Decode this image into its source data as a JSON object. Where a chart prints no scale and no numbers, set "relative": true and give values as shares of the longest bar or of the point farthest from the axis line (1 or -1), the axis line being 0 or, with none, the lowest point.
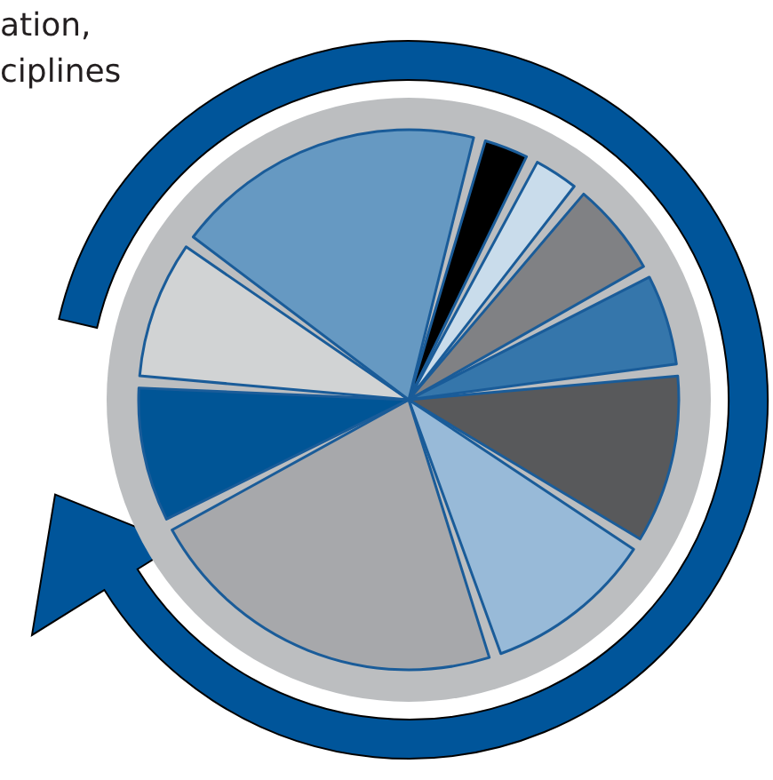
{
  "chart_data": {
    "type": "pie",
    "relative": true,
    "categories": [
      null,
      null,
      null,
      null,
      null,
      null,
      null,
      null,
      null,
      null
    ],
    "values": [
      2.8,
      2.8,
      6.0,
      5.8,
      10.8,
      10.9,
      23.5,
      8.6,
      8.8,
      20.0
    ],
    "colors": [
      "#000000",
      "#c9dceb",
      "#808184",
      "#3576ab",
      "#58595b",
      "#98bad8",
      "#a7a8ab",
      "#005596",
      "#d1d3d4",
      "#6699c2"
    ],
    "annotations": [
      "ation,",
      "ciplines"
    ]
  }
}
